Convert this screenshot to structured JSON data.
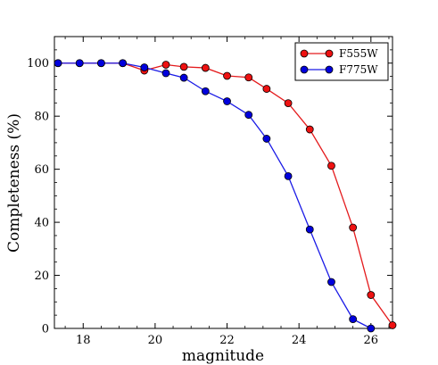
{
  "chart_data": {
    "type": "line",
    "xlabel": "magnitude",
    "ylabel": "Completeness (%)",
    "xlim": [
      17.2,
      26.6
    ],
    "ylim": [
      0,
      110
    ],
    "x_ticks": [
      18,
      20,
      22,
      24,
      26
    ],
    "y_ticks": [
      0,
      20,
      40,
      60,
      80,
      100
    ],
    "legend_position": "top-right",
    "grid": false,
    "series": [
      {
        "name": "F555W",
        "color": "#e41a1c",
        "marker_color": "#ee1111",
        "x": [
          17.3,
          17.9,
          18.5,
          19.1,
          19.7,
          20.3,
          20.8,
          21.4,
          22.0,
          22.6,
          23.1,
          23.7,
          24.3,
          24.9,
          25.5,
          26.0,
          26.6
        ],
        "values": [
          100.0,
          100.0,
          100.0,
          100.0,
          97.2,
          99.4,
          98.6,
          98.2,
          95.2,
          94.6,
          90.3,
          84.9,
          75.0,
          61.3,
          38.0,
          12.6,
          1.2
        ]
      },
      {
        "name": "F775W",
        "color": "#1a1ae6",
        "marker_color": "#0000dd",
        "x": [
          17.3,
          17.9,
          18.5,
          19.1,
          19.7,
          20.3,
          20.8,
          21.4,
          22.0,
          22.6,
          23.1,
          23.7,
          24.3,
          24.9,
          25.5,
          26.0
        ],
        "values": [
          100.0,
          100.0,
          100.0,
          100.0,
          98.4,
          96.2,
          94.5,
          89.4,
          85.6,
          80.5,
          71.5,
          57.4,
          37.3,
          17.5,
          3.5,
          0.0
        ]
      }
    ]
  }
}
